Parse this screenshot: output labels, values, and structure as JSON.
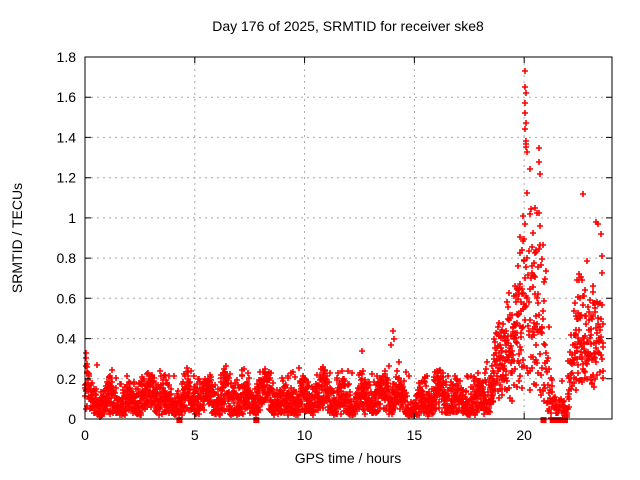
{
  "window": {
    "background": "#ffffff"
  },
  "colors": {
    "points": "#ff0000",
    "flags": "#ff0000",
    "grid": "#a8a8a8",
    "axis": "#000000",
    "text": "#000000",
    "background": "#ffffff"
  },
  "chart_data": {
    "type": "scatter",
    "title": "Day 176 of 2025, SRMTID for receiver ske8",
    "xlabel": "GPS time / hours",
    "ylabel": "SRMTID / TECUs",
    "xlim": [
      0,
      24
    ],
    "ylim": [
      0,
      1.8
    ],
    "xticks": [
      0,
      5,
      10,
      15,
      20
    ],
    "xtick_labels": [
      "0",
      "5",
      "10",
      "15",
      "20"
    ],
    "yticks": [
      0,
      0.2,
      0.4,
      0.6,
      0.8,
      1.0,
      1.2,
      1.4,
      1.6,
      1.8
    ],
    "ytick_labels": [
      "0",
      "0.2",
      "0.4",
      "0.6",
      "0.8",
      "1",
      "1.2",
      "1.4",
      "1.6",
      "1.8"
    ],
    "grid": true,
    "legend": "none",
    "marker": "plus",
    "seed": 7,
    "sample_step_hours": 0.008,
    "data_end_hour": 23.6,
    "series": [
      {
        "name": "SRMTID",
        "marker": "plus",
        "color": "#ff0000",
        "envelope_columns": [
          "hour",
          "y_min",
          "y_typical",
          "y_max",
          "density"
        ],
        "envelope": [
          [
            0.0,
            0.06,
            0.17,
            0.33,
            1
          ],
          [
            0.25,
            0.03,
            0.09,
            0.2,
            1
          ],
          [
            0.8,
            0.03,
            0.08,
            0.16,
            1
          ],
          [
            1.2,
            0.05,
            0.14,
            0.3,
            1
          ],
          [
            1.8,
            0.04,
            0.11,
            0.22,
            1
          ],
          [
            2.6,
            0.04,
            0.11,
            0.21,
            1
          ],
          [
            3.3,
            0.05,
            0.13,
            0.26,
            1
          ],
          [
            4.1,
            0.04,
            0.11,
            0.22,
            1
          ],
          [
            4.7,
            0.05,
            0.13,
            0.26,
            1
          ],
          [
            5.4,
            0.04,
            0.1,
            0.2,
            1
          ],
          [
            6.1,
            0.05,
            0.13,
            0.25,
            1
          ],
          [
            6.8,
            0.05,
            0.14,
            0.28,
            1
          ],
          [
            7.5,
            0.04,
            0.11,
            0.23,
            1
          ],
          [
            8.1,
            0.05,
            0.13,
            0.26,
            1
          ],
          [
            8.8,
            0.04,
            0.1,
            0.2,
            1
          ],
          [
            9.5,
            0.05,
            0.13,
            0.29,
            1
          ],
          [
            10.2,
            0.04,
            0.11,
            0.22,
            1
          ],
          [
            10.9,
            0.05,
            0.13,
            0.27,
            1
          ],
          [
            11.6,
            0.04,
            0.11,
            0.23,
            1
          ],
          [
            12.4,
            0.05,
            0.14,
            0.29,
            1
          ],
          [
            13.1,
            0.04,
            0.11,
            0.23,
            1
          ],
          [
            13.7,
            0.05,
            0.13,
            0.27,
            1
          ],
          [
            14.05,
            0.06,
            0.16,
            0.44,
            1
          ],
          [
            14.4,
            0.05,
            0.12,
            0.26,
            1
          ],
          [
            15.1,
            0.03,
            0.09,
            0.18,
            1
          ],
          [
            15.8,
            0.04,
            0.12,
            0.25,
            1
          ],
          [
            16.5,
            0.05,
            0.13,
            0.26,
            1
          ],
          [
            17.2,
            0.04,
            0.11,
            0.22,
            1
          ],
          [
            17.9,
            0.05,
            0.13,
            0.24,
            1
          ],
          [
            18.4,
            0.07,
            0.16,
            0.3,
            1
          ],
          [
            18.8,
            0.12,
            0.27,
            0.48,
            1
          ],
          [
            19.2,
            0.16,
            0.34,
            0.58,
            1
          ],
          [
            19.6,
            0.2,
            0.42,
            0.75,
            0.9
          ],
          [
            19.95,
            0.28,
            0.6,
            1.15,
            0.9
          ],
          [
            20.1,
            0.35,
            0.85,
            1.73,
            0.85
          ],
          [
            20.3,
            0.28,
            0.65,
            1.3,
            0.7
          ],
          [
            20.55,
            0.2,
            0.55,
            1.2,
            0.8
          ],
          [
            20.7,
            0.18,
            0.5,
            1.35,
            0.8
          ],
          [
            20.9,
            0.12,
            0.4,
            0.95,
            0.7
          ],
          [
            21.15,
            0.01,
            0.12,
            0.5,
            0.6
          ],
          [
            21.5,
            0.0,
            0.03,
            0.12,
            0.7
          ],
          [
            21.95,
            0.01,
            0.08,
            0.3,
            0.6
          ],
          [
            22.25,
            0.12,
            0.32,
            0.6,
            0.9
          ],
          [
            22.55,
            0.2,
            0.45,
            0.92,
            1
          ],
          [
            22.85,
            0.22,
            0.42,
            0.8,
            0.9
          ],
          [
            23.15,
            0.2,
            0.42,
            0.88,
            0.9
          ],
          [
            23.4,
            0.28,
            0.52,
            1.12,
            0.8
          ],
          [
            23.6,
            0.18,
            0.4,
            0.75,
            0.7
          ]
        ],
        "notable_points": [
          [
            20.02,
            1.73
          ],
          [
            20.05,
            1.65
          ],
          [
            20.08,
            1.62
          ],
          [
            20.02,
            1.57
          ],
          [
            20.06,
            1.52
          ],
          [
            20.1,
            1.47
          ],
          [
            20.04,
            1.44
          ],
          [
            20.07,
            1.38
          ],
          [
            20.12,
            1.33
          ],
          [
            20.68,
            1.35
          ],
          [
            20.66,
            1.28
          ],
          [
            20.72,
            1.22
          ],
          [
            22.68,
            1.12
          ],
          [
            23.38,
            0.97
          ],
          [
            14.02,
            0.44
          ],
          [
            14.05,
            0.4
          ],
          [
            12.62,
            0.34
          ],
          [
            0.04,
            0.33
          ],
          [
            0.55,
            0.27
          ]
        ]
      },
      {
        "name": "flags",
        "marker": "filled-square",
        "color": "#ff0000",
        "y": 0,
        "x_singles": [
          4.3,
          7.8,
          20.88
        ],
        "x_bar": {
          "from": 21.3,
          "to": 21.88,
          "step": 0.04
        }
      }
    ]
  }
}
